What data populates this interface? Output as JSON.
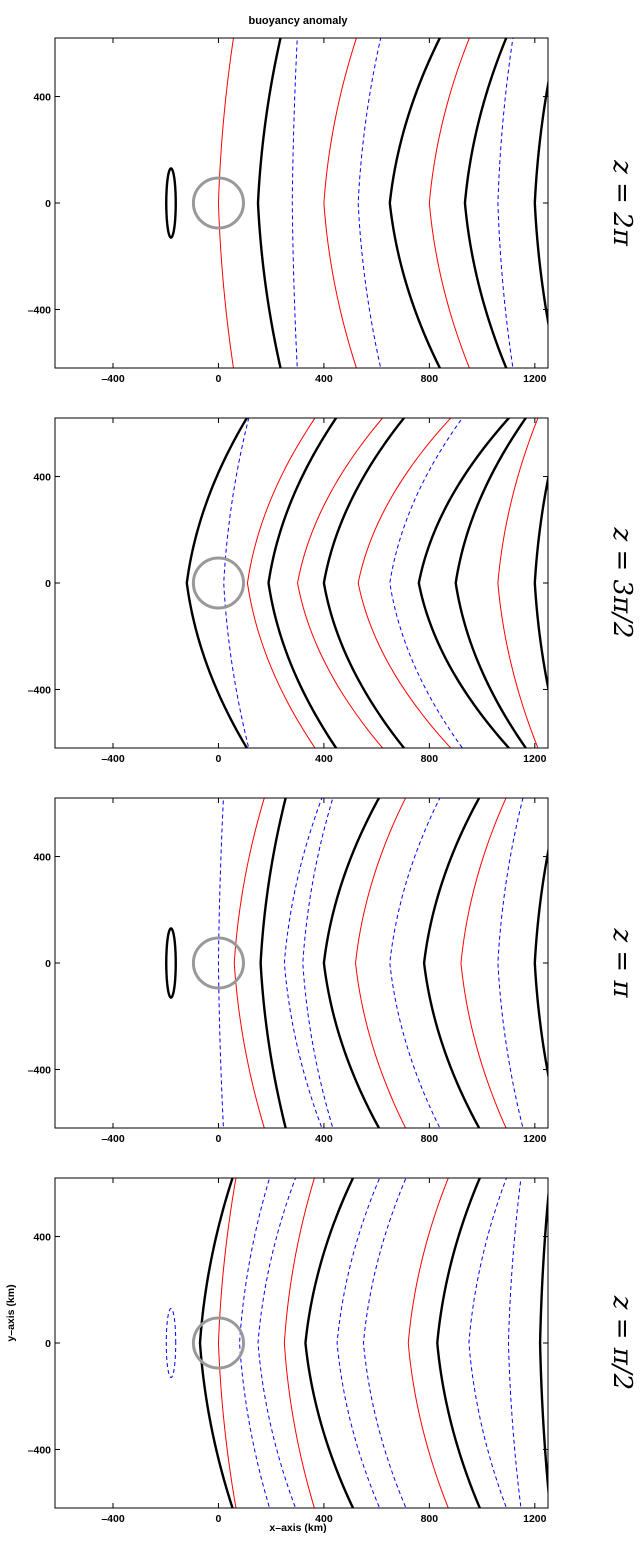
{
  "chart_data": {
    "type": "contour",
    "title": "buoyancy anomaly",
    "xlabel": "x–axis (km)",
    "ylabel": "y–axis (km)",
    "xlim": [
      -620,
      1250
    ],
    "ylim": [
      -620,
      620
    ],
    "x_ticks": [
      -400,
      0,
      400,
      800,
      1200
    ],
    "x_tick_labels": [
      "–400",
      "0",
      "400",
      "800",
      "1200"
    ],
    "y_ticks": [
      -400,
      0,
      400
    ],
    "y_tick_labels": [
      "–400",
      "0",
      "400"
    ],
    "grid": false,
    "marker": {
      "shape": "circle",
      "x": 0,
      "y": 0,
      "radius_km": 95,
      "color": "#999999"
    },
    "series_styles": [
      {
        "role": "zero contour",
        "color": "#000000",
        "line": "solid"
      },
      {
        "role": "positive contour",
        "color": "#ff0000",
        "line": "solid"
      },
      {
        "role": "negative contour",
        "color": "#0000ff",
        "line": "dashed"
      }
    ],
    "panels": [
      {
        "label": "z = 2π",
        "vertex_x": [
          -180,
          0,
          150,
          280,
          400,
          530,
          650,
          800,
          935,
          1060,
          1200
        ],
        "vertex_type": [
          "zero",
          "pos",
          "zero",
          "neg",
          "pos",
          "neg",
          "zero",
          "pos",
          "zero",
          "neg",
          "zero"
        ],
        "top_x": [
          null,
          60,
          240,
          300,
          530,
          620,
          850,
          960,
          1100,
          1120,
          1290
        ]
      },
      {
        "label": "z = 3π/2",
        "vertex_x": [
          -120,
          20,
          110,
          190,
          300,
          400,
          530,
          650,
          760,
          900,
          1060,
          1200
        ],
        "vertex_type": [
          "zero",
          "neg",
          "pos",
          "zero",
          "pos",
          "zero",
          "pos",
          "neg",
          "zero",
          "zero",
          "pos",
          "zero"
        ],
        "top_x": [
          120,
          120,
          380,
          460,
          640,
          720,
          900,
          940,
          1120,
          1180,
          1220,
          1310
        ]
      },
      {
        "label": "z = π",
        "vertex_x": [
          -180,
          0,
          60,
          160,
          250,
          320,
          400,
          520,
          650,
          780,
          920,
          1060,
          1200
        ],
        "vertex_type": [
          "zero",
          "neg",
          "pos",
          "zero",
          "neg",
          "neg",
          "zero",
          "pos",
          "neg",
          "zero",
          "pos",
          "neg",
          "zero"
        ],
        "top_x": [
          null,
          20,
          180,
          260,
          400,
          440,
          620,
          720,
          850,
          1000,
          1100,
          1160,
          1300
        ]
      },
      {
        "label": "z = π/2",
        "vertex_x": [
          -180,
          -70,
          0,
          80,
          150,
          250,
          330,
          450,
          550,
          720,
          830,
          950,
          1100,
          1220
        ],
        "vertex_type": [
          "neg",
          "zero",
          "pos",
          "neg",
          "neg",
          "pos",
          "zero",
          "neg",
          "neg",
          "pos",
          "zero",
          "neg",
          "neg",
          "zero"
        ],
        "top_x": [
          null,
          60,
          70,
          200,
          300,
          370,
          520,
          620,
          720,
          880,
          1000,
          1100,
          1150,
          1260
        ]
      }
    ]
  }
}
